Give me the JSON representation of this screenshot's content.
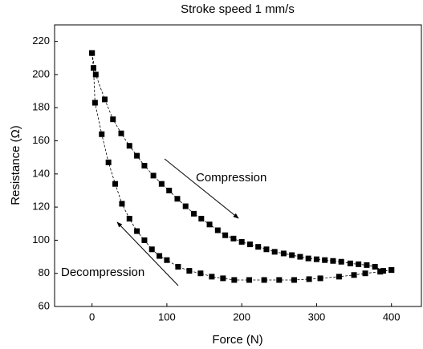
{
  "chart_data": {
    "type": "scatter",
    "title": "Stroke speed 1 mm/s",
    "xlabel": "Force (N)",
    "ylabel": "Resistance (Ω)",
    "annotations": [
      "Compression",
      "Decompression"
    ],
    "xlim": [
      -50,
      440
    ],
    "ylim": [
      60,
      230
    ],
    "xticks": [
      0,
      100,
      200,
      300,
      400
    ],
    "yticks": [
      60,
      80,
      100,
      120,
      140,
      160,
      180,
      200,
      220
    ],
    "series": [
      {
        "color": "#000000",
        "x": [
          0,
          5,
          17,
          28,
          39,
          50,
          60,
          70,
          82,
          93,
          103,
          114,
          125,
          136,
          146,
          157,
          168,
          178,
          189,
          200,
          211,
          222,
          233,
          244,
          256,
          267,
          278,
          289,
          300,
          311,
          322,
          333,
          345,
          356,
          367,
          378,
          389,
          400
        ],
        "values": [
          213,
          200,
          185,
          173,
          164.5,
          157,
          151,
          145,
          139,
          134,
          130,
          125,
          120.5,
          116,
          113,
          109.5,
          106,
          103,
          101,
          99,
          97.5,
          96,
          94.5,
          93,
          92,
          91,
          90,
          89,
          88.5,
          88,
          87.5,
          87,
          86,
          85.5,
          85,
          84,
          81.5,
          82
        ]
      },
      {
        "color": "#000000",
        "x": [
          400,
          385,
          365,
          350,
          330,
          305,
          290,
          270,
          250,
          230,
          210,
          190,
          175,
          160,
          145,
          130,
          115,
          100,
          90,
          80,
          70,
          60,
          50,
          40,
          31,
          22,
          13,
          4,
          2,
          0
        ],
        "values": [
          82,
          81,
          80,
          79,
          78,
          77,
          76.5,
          76,
          76,
          76,
          76,
          76,
          77,
          78,
          80,
          81.5,
          84,
          88,
          90.5,
          94.5,
          100,
          105.5,
          113,
          122,
          134,
          147,
          164,
          183,
          204,
          213
        ]
      }
    ]
  }
}
